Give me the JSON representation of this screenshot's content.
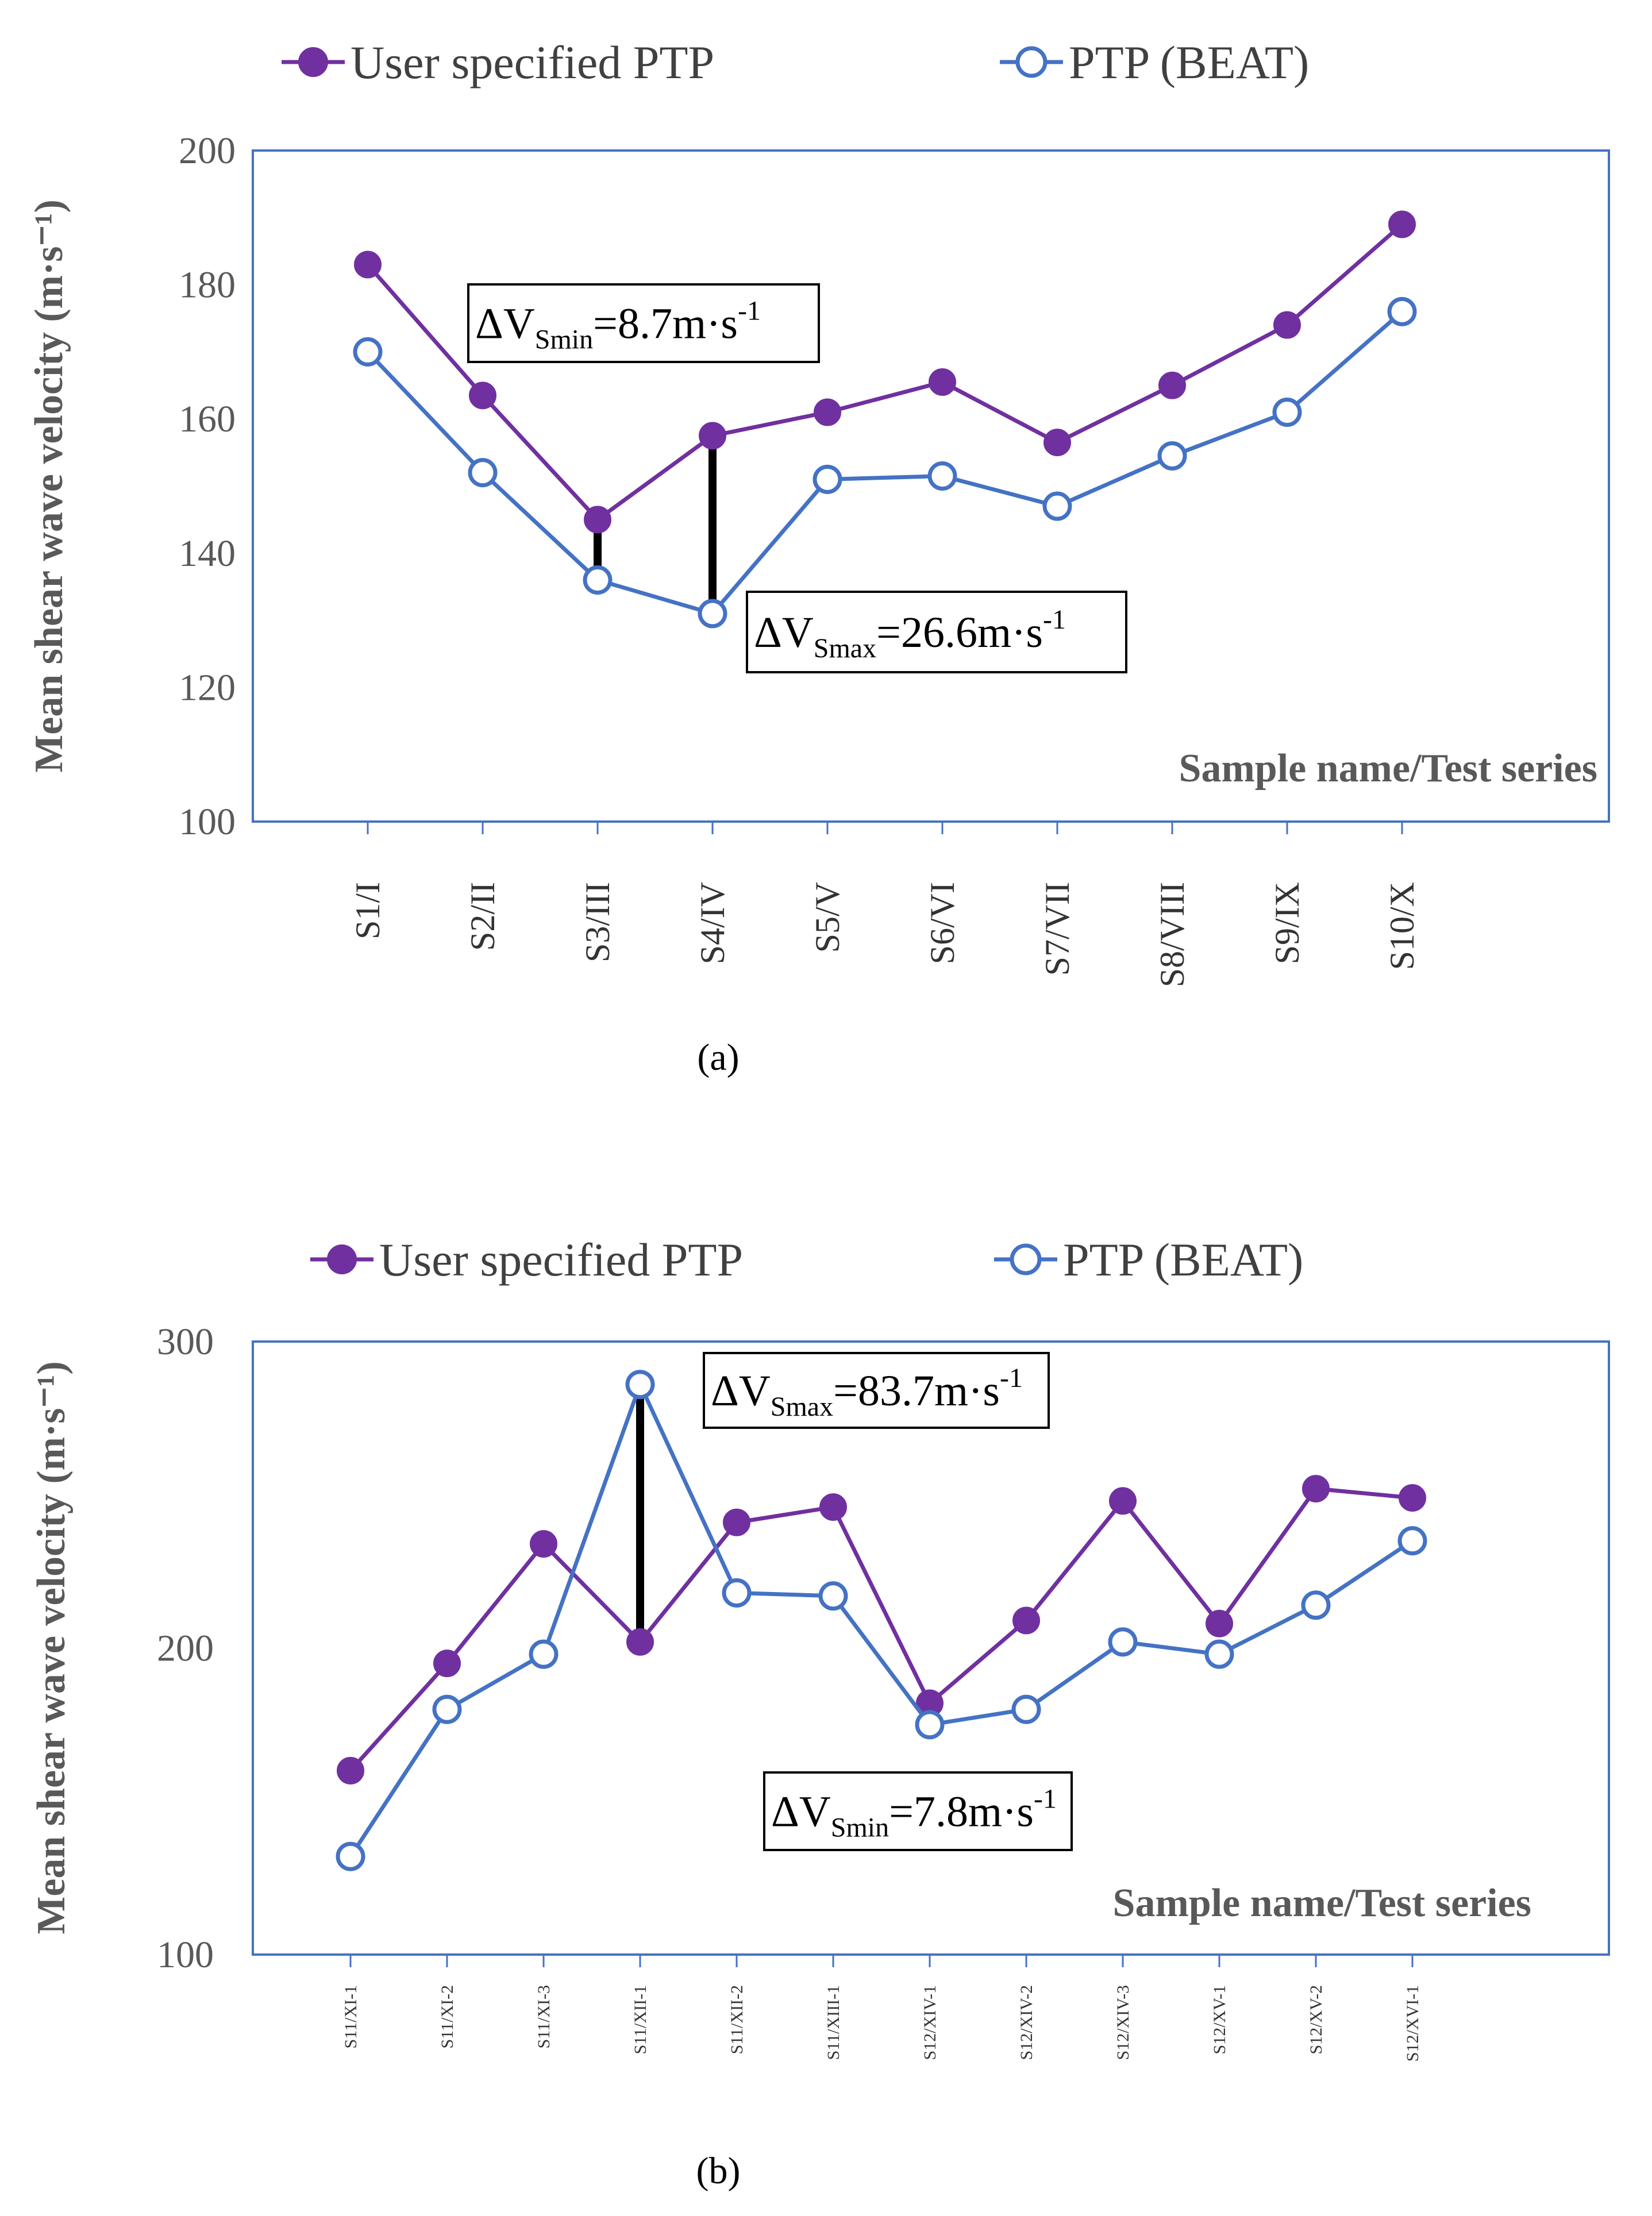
{
  "colors": {
    "user_series": "#7030A0",
    "beat_series": "#4472C4",
    "frame": "#4472C4",
    "text": "#595959",
    "delta_bar": "#000000"
  },
  "chart_data": [
    {
      "type": "line",
      "panel_label": "(a)",
      "xlabel": "Sample name/Test series",
      "ylabel": "Mean shear wave velocity (m·s⁻¹)",
      "ylim": [
        100,
        200
      ],
      "yticks": [
        100,
        120,
        140,
        160,
        180,
        200
      ],
      "grid": false,
      "legend_position": "top",
      "categories": [
        "S1/I",
        "S2/II",
        "S3/III",
        "S4/IV",
        "S5/V",
        "S6/VI",
        "S7/VII",
        "S8/VIII",
        "S9/IX",
        "S10/X"
      ],
      "series": [
        {
          "name": "User specified PTP",
          "marker": "filled-circle",
          "values": [
            183,
            163.5,
            145,
            157.5,
            161,
            165.5,
            156.5,
            165,
            174,
            189
          ]
        },
        {
          "name": "PTP (BEAT)",
          "marker": "open-circle",
          "values": [
            170,
            152,
            136,
            131,
            151,
            151.5,
            147,
            154.5,
            161,
            176
          ]
        }
      ],
      "annotations": [
        {
          "main": "ΔV",
          "sub": "Smin",
          "value": "=8.7m·s",
          "sup": "-1",
          "category": "S3/III"
        },
        {
          "main": "ΔV",
          "sub": "Smax",
          "value": "=26.6m·s",
          "sup": "-1",
          "category": "S4/IV"
        }
      ]
    },
    {
      "type": "line",
      "panel_label": "(b)",
      "xlabel": "Sample name/Test series",
      "ylabel": "Mean shear wave velocity (m·s⁻¹)",
      "ylim": [
        100,
        300
      ],
      "yticks": [
        100,
        200,
        300
      ],
      "grid": false,
      "legend_position": "top",
      "categories": [
        "S11/XI-1",
        "S11/XI-2",
        "S11/XI-3",
        "S11/XII-1",
        "S11/XII-2",
        "S11/XIII-1",
        "S12/XIV-1",
        "S12/XIV-2",
        "S12/XIV-3",
        "S12/XV-1",
        "S12/XV-2",
        "S12/XVI-1"
      ],
      "series": [
        {
          "name": "User specified PTP",
          "marker": "filled-circle",
          "values": [
            160,
            195,
            234,
            202,
            241,
            246,
            182,
            209,
            248,
            208,
            252,
            249
          ]
        },
        {
          "name": "PTP (BEAT)",
          "marker": "open-circle",
          "values": [
            132,
            180,
            198,
            286,
            218,
            217,
            175,
            180,
            202,
            198,
            214,
            235
          ]
        }
      ],
      "annotations": [
        {
          "main": "ΔV",
          "sub": "Smax",
          "value": "=83.7m·s",
          "sup": "-1",
          "category": "S11/XII-1"
        },
        {
          "main": "ΔV",
          "sub": "Smin",
          "value": "=7.8m·s",
          "sup": "-1",
          "category": "S12/XIV-1"
        }
      ]
    }
  ]
}
